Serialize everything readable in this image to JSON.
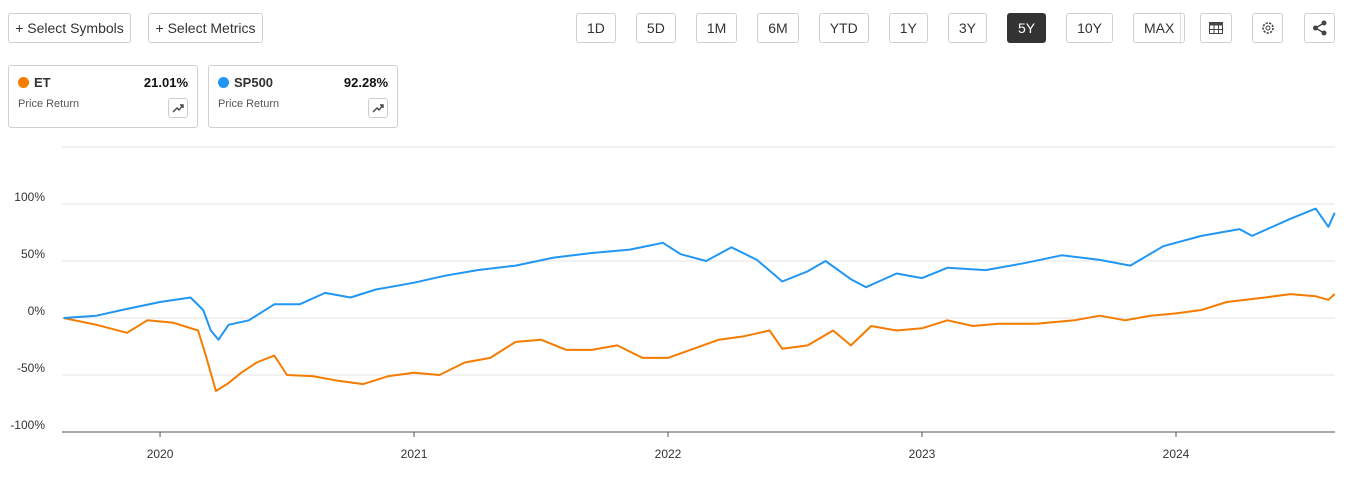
{
  "toolbar": {
    "buttons": [
      "+ Select Symbols",
      "+ Select Metrics"
    ],
    "ranges": [
      "1D",
      "5D",
      "1M",
      "6M",
      "YTD",
      "1Y",
      "3Y",
      "5Y",
      "10Y",
      "MAX"
    ],
    "active": "5Y"
  },
  "cards": [
    {
      "return": "21.01%",
      "metric": "Price Return"
    },
    {
      "return": "92.28%",
      "metric": "Price Return"
    }
  ],
  "chart_data": {
    "type": "line",
    "xlim": [
      2019.614,
      2024.626
    ],
    "xticks": [
      2020,
      2021,
      2022,
      2023,
      2024
    ],
    "ylim": [
      -100,
      150
    ],
    "yticks": [
      {
        "value": -100,
        "label": "-100%"
      },
      {
        "value": -50,
        "label": "-50%"
      },
      {
        "value": 0,
        "label": "0%"
      },
      {
        "value": 50,
        "label": "50%"
      },
      {
        "value": 100,
        "label": "100%"
      }
    ],
    "grid": true,
    "series": [
      {
        "name": "ET",
        "color": "#f57c00",
        "x": [
          2019.62,
          2019.75,
          2019.87,
          2019.95,
          2020.05,
          2020.15,
          2020.18,
          2020.22,
          2020.27,
          2020.32,
          2020.38,
          2020.45,
          2020.5,
          2020.6,
          2020.7,
          2020.8,
          2020.9,
          2021.0,
          2021.1,
          2021.2,
          2021.3,
          2021.4,
          2021.5,
          2021.6,
          2021.7,
          2021.8,
          2021.9,
          2022.0,
          2022.1,
          2022.2,
          2022.3,
          2022.4,
          2022.45,
          2022.55,
          2022.65,
          2022.72,
          2022.8,
          2022.9,
          2023.0,
          2023.1,
          2023.2,
          2023.3,
          2023.45,
          2023.6,
          2023.7,
          2023.8,
          2023.9,
          2024.0,
          2024.1,
          2024.2,
          2024.35,
          2024.45,
          2024.55,
          2024.6,
          2024.625
        ],
        "values": [
          0,
          -6,
          -13,
          -2,
          -4,
          -11,
          -33,
          -64,
          -57,
          -48,
          -39,
          -33,
          -50,
          -51,
          -55,
          -58,
          -51,
          -48,
          -50,
          -39,
          -35,
          -21,
          -19,
          -28,
          -28,
          -24,
          -35,
          -35,
          -27,
          -19,
          -16,
          -11,
          -27,
          -24,
          -11,
          -24,
          -7,
          -11,
          -9,
          -2,
          -7,
          -5,
          -5,
          -2,
          2,
          -2,
          2,
          4,
          7,
          14,
          18,
          21,
          19,
          16,
          21.01
        ]
      },
      {
        "name": "SP500",
        "color": "#2196f3",
        "x": [
          2019.62,
          2019.75,
          2019.85,
          2020.0,
          2020.12,
          2020.17,
          2020.2,
          2020.23,
          2020.27,
          2020.35,
          2020.45,
          2020.55,
          2020.65,
          2020.75,
          2020.85,
          2021.0,
          2021.12,
          2021.25,
          2021.4,
          2021.55,
          2021.7,
          2021.85,
          2021.98,
          2022.05,
          2022.15,
          2022.25,
          2022.35,
          2022.45,
          2022.55,
          2022.62,
          2022.72,
          2022.78,
          2022.9,
          2023.0,
          2023.1,
          2023.25,
          2023.4,
          2023.55,
          2023.7,
          2023.82,
          2023.95,
          2024.1,
          2024.25,
          2024.3,
          2024.45,
          2024.55,
          2024.6,
          2024.625
        ],
        "values": [
          0,
          2,
          7,
          14,
          18,
          7,
          -11,
          -19,
          -6,
          -2,
          12,
          12,
          22,
          18,
          25,
          31,
          37,
          42,
          46,
          53,
          57,
          60,
          66,
          56,
          50,
          62,
          51,
          32,
          41,
          50,
          34,
          27,
          39,
          35,
          44,
          42,
          48,
          55,
          51,
          46,
          63,
          72,
          78,
          72,
          87,
          96,
          80,
          92.28
        ]
      }
    ]
  }
}
